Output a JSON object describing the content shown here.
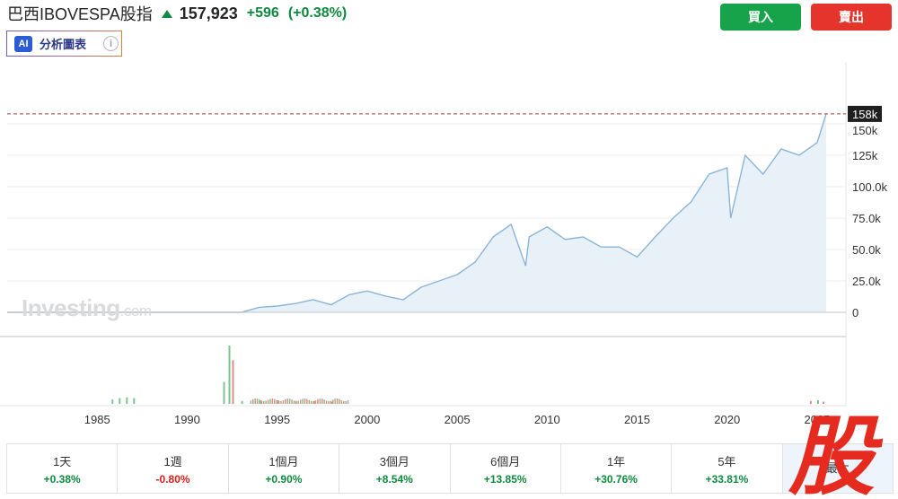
{
  "header": {
    "title": "巴西IBOVESPA股指",
    "price": "157,923",
    "change": "+596",
    "change_pct": "(+0.38%)"
  },
  "ai_button": {
    "badge": "AI",
    "label": "分析圖表"
  },
  "info_icon": "i",
  "actions": {
    "buy": "買入",
    "sell": "賣出"
  },
  "watermark": {
    "brand": "Investing",
    "suffix": ".com"
  },
  "current_price_label": "158k",
  "chart_data": {
    "type": "area",
    "y_ticks": [
      "150k",
      "125k",
      "100.0k",
      "75.0k",
      "50.0k",
      "25.0k",
      "0"
    ],
    "x_ticks": [
      "1985",
      "1990",
      "1995",
      "2000",
      "2005",
      "2010",
      "2015",
      "2020",
      "2025"
    ],
    "ylim": [
      0,
      158000
    ],
    "current_value": 157923,
    "series": [
      {
        "x": [
          1980,
          1993,
          1994,
          1995,
          1996,
          1997,
          1998,
          1999,
          2000,
          2001,
          2002,
          2003,
          2004,
          2005,
          2006,
          2007,
          2008,
          2008.8,
          2009,
          2010,
          2011,
          2012,
          2013,
          2014,
          2015,
          2016,
          2017,
          2018,
          2019,
          2020,
          2020.2,
          2021,
          2022,
          2023,
          2024,
          2025,
          2025.5
        ],
        "values": [
          0,
          0,
          4000,
          5000,
          7000,
          10000,
          6000,
          14000,
          17000,
          13000,
          10000,
          20000,
          25000,
          30000,
          40000,
          60000,
          70000,
          37000,
          60000,
          68000,
          58000,
          60000,
          52000,
          52000,
          44000,
          60000,
          75000,
          88000,
          110000,
          115000,
          75000,
          125000,
          110000,
          130000,
          125000,
          135000,
          158000
        ]
      }
    ],
    "volume": {
      "x": [
        1985.8,
        1986.2,
        1986.6,
        1987.0,
        1992.0,
        1992.3,
        1992.5,
        1993.0,
        1994.0,
        1995.0,
        1996.0,
        1997.0,
        1998.0,
        2024.6,
        2025.0,
        2025.3
      ],
      "values": [
        6,
        8,
        9,
        8,
        30,
        80,
        60,
        4,
        5,
        5,
        4,
        4,
        3,
        4,
        5,
        3
      ],
      "up": [
        true,
        true,
        true,
        true,
        true,
        true,
        false,
        true,
        true,
        false,
        true,
        false,
        false,
        false,
        true,
        false
      ]
    },
    "grid": true
  },
  "periods": [
    {
      "label": "1天",
      "value": "+0.38%",
      "dir": "pos"
    },
    {
      "label": "1週",
      "value": "-0.80%",
      "dir": "neg"
    },
    {
      "label": "1個月",
      "value": "+0.90%",
      "dir": "pos"
    },
    {
      "label": "3個月",
      "value": "+8.54%",
      "dir": "pos"
    },
    {
      "label": "6個月",
      "value": "+13.85%",
      "dir": "pos"
    },
    {
      "label": "1年",
      "value": "+30.76%",
      "dir": "pos"
    },
    {
      "label": "5年",
      "value": "+33.81%",
      "dir": "pos"
    },
    {
      "label": "最大",
      "value": "",
      "dir": "pos"
    }
  ],
  "stamp_text": "股",
  "colors": {
    "up": "#0e8a3e",
    "down": "#d91e18",
    "line": "#8bb4d9",
    "fill": "#e8f0f8",
    "stamp": "#e52a1f"
  }
}
